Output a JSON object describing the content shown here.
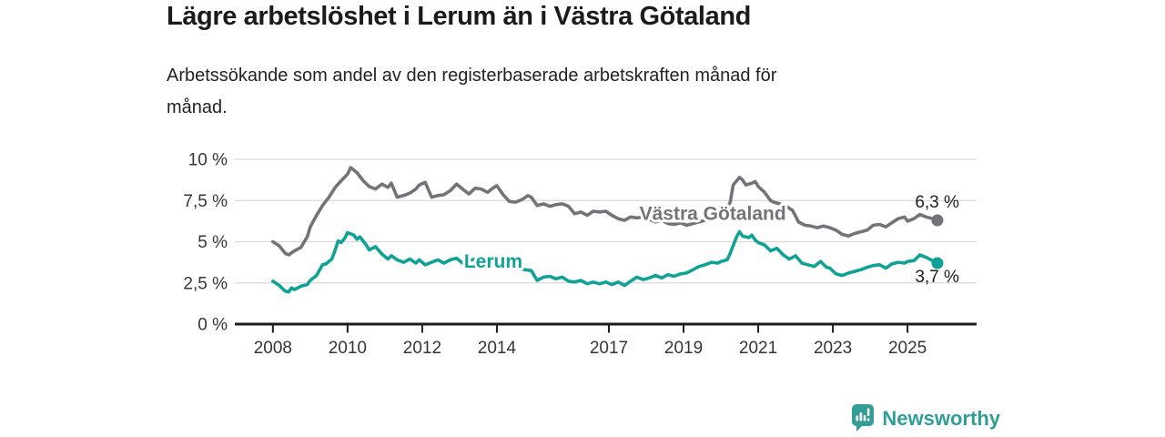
{
  "page": {
    "title": "Lägre arbetslöshet i Lerum än i Västra Götaland",
    "subtitle": "Arbetssökande som andel av den registerbaserade arbetskraften månad för månad.",
    "subtitle_lines": [
      "Arbetssökande som andel av den registerbaserade arbetskraften månad för",
      "månad."
    ],
    "background": "#ffffff"
  },
  "branding": {
    "name": "Newsworthy",
    "icon": "bar-chart-speech-bubble-icon",
    "color": "#2f9e97"
  },
  "colors": {
    "axis": "#1d1d1f",
    "grid": "#d9d9d9",
    "tick_text": "#333639",
    "title_text": "#1b1b1b",
    "vastra_gotaland": "#73737a",
    "lerum": "#11a296"
  },
  "chart_data": {
    "type": "line",
    "title": "Lägre arbetslöshet i Lerum än i Västra Götaland",
    "subtitle": "Arbetssökande som andel av den registerbaserade arbetskraften månad för månad.",
    "unit": "%",
    "grid": true,
    "x_axis": {
      "range": [
        2006.98,
        2026.85
      ],
      "ticks": [
        2008,
        2010,
        2012,
        2014,
        2017,
        2019,
        2021,
        2023,
        2025
      ]
    },
    "y_axis": {
      "range": [
        0,
        10
      ],
      "ticks": [
        {
          "value": 0,
          "label": "0 %"
        },
        {
          "value": 2.5,
          "label": "2,5 %"
        },
        {
          "value": 5,
          "label": "5 %"
        },
        {
          "value": 7.5,
          "label": "7,5 %"
        },
        {
          "value": 10,
          "label": "10 %"
        }
      ]
    },
    "series": [
      {
        "name": "Västra Götaland",
        "color": "#73737a",
        "end_label": "6,3 %",
        "end_label_side": "above",
        "label_at": {
          "x": 2017.82,
          "y": 6.32
        },
        "points": [
          [
            2008.0,
            5.0
          ],
          [
            2008.17,
            4.75
          ],
          [
            2008.33,
            4.3
          ],
          [
            2008.42,
            4.2
          ],
          [
            2008.58,
            4.45
          ],
          [
            2008.75,
            4.65
          ],
          [
            2008.92,
            5.3
          ],
          [
            2009.0,
            5.9
          ],
          [
            2009.17,
            6.6
          ],
          [
            2009.33,
            7.2
          ],
          [
            2009.5,
            7.7
          ],
          [
            2009.67,
            8.3
          ],
          [
            2009.83,
            8.7
          ],
          [
            2010.0,
            9.1
          ],
          [
            2010.08,
            9.5
          ],
          [
            2010.25,
            9.2
          ],
          [
            2010.42,
            8.7
          ],
          [
            2010.58,
            8.35
          ],
          [
            2010.75,
            8.2
          ],
          [
            2010.92,
            8.5
          ],
          [
            2011.08,
            8.3
          ],
          [
            2011.17,
            8.55
          ],
          [
            2011.33,
            7.7
          ],
          [
            2011.5,
            7.8
          ],
          [
            2011.67,
            7.95
          ],
          [
            2011.83,
            8.2
          ],
          [
            2011.92,
            8.45
          ],
          [
            2012.08,
            8.6
          ],
          [
            2012.25,
            7.7
          ],
          [
            2012.42,
            7.8
          ],
          [
            2012.58,
            7.85
          ],
          [
            2012.75,
            8.1
          ],
          [
            2012.92,
            8.5
          ],
          [
            2013.08,
            8.2
          ],
          [
            2013.25,
            7.9
          ],
          [
            2013.42,
            8.25
          ],
          [
            2013.58,
            8.2
          ],
          [
            2013.75,
            8.0
          ],
          [
            2013.92,
            8.3
          ],
          [
            2014.0,
            8.4
          ],
          [
            2014.17,
            7.85
          ],
          [
            2014.33,
            7.45
          ],
          [
            2014.5,
            7.4
          ],
          [
            2014.67,
            7.55
          ],
          [
            2014.83,
            7.8
          ],
          [
            2014.92,
            7.7
          ],
          [
            2015.08,
            7.2
          ],
          [
            2015.25,
            7.3
          ],
          [
            2015.42,
            7.15
          ],
          [
            2015.58,
            7.25
          ],
          [
            2015.75,
            7.3
          ],
          [
            2015.92,
            7.15
          ],
          [
            2016.08,
            6.7
          ],
          [
            2016.25,
            6.8
          ],
          [
            2016.42,
            6.6
          ],
          [
            2016.58,
            6.85
          ],
          [
            2016.75,
            6.8
          ],
          [
            2016.92,
            6.85
          ],
          [
            2017.08,
            6.6
          ],
          [
            2017.25,
            6.4
          ],
          [
            2017.42,
            6.3
          ],
          [
            2017.58,
            6.5
          ],
          [
            2017.75,
            6.45
          ],
          [
            2017.92,
            6.5
          ],
          [
            2018.08,
            6.35
          ],
          [
            2018.25,
            6.2
          ],
          [
            2018.42,
            6.3
          ],
          [
            2018.58,
            6.1
          ],
          [
            2018.75,
            6.05
          ],
          [
            2018.92,
            6.15
          ],
          [
            2019.08,
            6.0
          ],
          [
            2019.25,
            6.1
          ],
          [
            2019.42,
            6.2
          ],
          [
            2019.58,
            6.3
          ],
          [
            2019.75,
            6.45
          ],
          [
            2019.92,
            6.6
          ],
          [
            2020.08,
            6.65
          ],
          [
            2020.25,
            7.4
          ],
          [
            2020.33,
            8.45
          ],
          [
            2020.5,
            8.9
          ],
          [
            2020.58,
            8.75
          ],
          [
            2020.67,
            8.45
          ],
          [
            2020.83,
            8.55
          ],
          [
            2020.92,
            8.65
          ],
          [
            2021.0,
            8.35
          ],
          [
            2021.17,
            8.0
          ],
          [
            2021.33,
            7.5
          ],
          [
            2021.42,
            7.4
          ],
          [
            2021.58,
            7.3
          ],
          [
            2021.75,
            7.15
          ],
          [
            2021.92,
            6.9
          ],
          [
            2022.08,
            6.2
          ],
          [
            2022.25,
            6.0
          ],
          [
            2022.42,
            5.95
          ],
          [
            2022.58,
            5.85
          ],
          [
            2022.75,
            5.95
          ],
          [
            2022.92,
            5.85
          ],
          [
            2023.08,
            5.7
          ],
          [
            2023.25,
            5.45
          ],
          [
            2023.42,
            5.35
          ],
          [
            2023.58,
            5.5
          ],
          [
            2023.75,
            5.6
          ],
          [
            2023.92,
            5.7
          ],
          [
            2024.08,
            6.0
          ],
          [
            2024.25,
            6.05
          ],
          [
            2024.42,
            5.9
          ],
          [
            2024.58,
            6.15
          ],
          [
            2024.75,
            6.4
          ],
          [
            2024.92,
            6.5
          ],
          [
            2025.0,
            6.25
          ],
          [
            2025.17,
            6.4
          ],
          [
            2025.33,
            6.65
          ],
          [
            2025.5,
            6.5
          ],
          [
            2025.67,
            6.4
          ],
          [
            2025.8,
            6.3
          ]
        ]
      },
      {
        "name": "Lerum",
        "color": "#11a296",
        "end_label": "3,7 %",
        "end_label_side": "below",
        "label_at": {
          "x": 2013.12,
          "y": 3.43
        },
        "points": [
          [
            2008.0,
            2.6
          ],
          [
            2008.17,
            2.35
          ],
          [
            2008.33,
            2.0
          ],
          [
            2008.42,
            1.95
          ],
          [
            2008.5,
            2.2
          ],
          [
            2008.58,
            2.1
          ],
          [
            2008.75,
            2.3
          ],
          [
            2008.92,
            2.4
          ],
          [
            2009.0,
            2.65
          ],
          [
            2009.17,
            2.95
          ],
          [
            2009.33,
            3.6
          ],
          [
            2009.42,
            3.65
          ],
          [
            2009.58,
            3.95
          ],
          [
            2009.67,
            4.5
          ],
          [
            2009.75,
            5.05
          ],
          [
            2009.83,
            4.95
          ],
          [
            2009.92,
            5.2
          ],
          [
            2010.0,
            5.55
          ],
          [
            2010.17,
            5.4
          ],
          [
            2010.25,
            5.15
          ],
          [
            2010.33,
            5.3
          ],
          [
            2010.5,
            4.8
          ],
          [
            2010.58,
            4.5
          ],
          [
            2010.75,
            4.7
          ],
          [
            2010.92,
            4.25
          ],
          [
            2011.08,
            3.95
          ],
          [
            2011.17,
            4.15
          ],
          [
            2011.33,
            3.9
          ],
          [
            2011.5,
            3.75
          ],
          [
            2011.67,
            3.95
          ],
          [
            2011.83,
            3.7
          ],
          [
            2011.92,
            3.9
          ],
          [
            2012.08,
            3.6
          ],
          [
            2012.25,
            3.75
          ],
          [
            2012.42,
            3.9
          ],
          [
            2012.58,
            3.7
          ],
          [
            2012.75,
            3.9
          ],
          [
            2012.92,
            4.0
          ],
          [
            2013.08,
            3.7
          ],
          [
            2013.25,
            3.85
          ],
          [
            2013.42,
            3.95
          ],
          [
            2013.58,
            3.8
          ],
          [
            2013.75,
            3.9
          ],
          [
            2013.92,
            3.8
          ],
          [
            2014.08,
            3.9
          ],
          [
            2014.25,
            3.7
          ],
          [
            2014.42,
            3.5
          ],
          [
            2014.58,
            3.4
          ],
          [
            2014.75,
            3.3
          ],
          [
            2014.92,
            3.25
          ],
          [
            2015.08,
            2.65
          ],
          [
            2015.25,
            2.85
          ],
          [
            2015.42,
            2.9
          ],
          [
            2015.58,
            2.75
          ],
          [
            2015.75,
            2.85
          ],
          [
            2015.92,
            2.6
          ],
          [
            2016.08,
            2.55
          ],
          [
            2016.25,
            2.65
          ],
          [
            2016.42,
            2.45
          ],
          [
            2016.58,
            2.55
          ],
          [
            2016.75,
            2.45
          ],
          [
            2016.92,
            2.55
          ],
          [
            2017.08,
            2.4
          ],
          [
            2017.25,
            2.55
          ],
          [
            2017.42,
            2.35
          ],
          [
            2017.58,
            2.6
          ],
          [
            2017.75,
            2.85
          ],
          [
            2017.92,
            2.7
          ],
          [
            2018.08,
            2.8
          ],
          [
            2018.25,
            2.95
          ],
          [
            2018.42,
            2.8
          ],
          [
            2018.58,
            3.0
          ],
          [
            2018.75,
            2.9
          ],
          [
            2018.92,
            3.05
          ],
          [
            2019.08,
            3.1
          ],
          [
            2019.25,
            3.3
          ],
          [
            2019.42,
            3.5
          ],
          [
            2019.58,
            3.6
          ],
          [
            2019.75,
            3.75
          ],
          [
            2019.92,
            3.7
          ],
          [
            2020.0,
            3.8
          ],
          [
            2020.17,
            3.9
          ],
          [
            2020.25,
            4.3
          ],
          [
            2020.42,
            5.3
          ],
          [
            2020.5,
            5.6
          ],
          [
            2020.58,
            5.35
          ],
          [
            2020.75,
            5.25
          ],
          [
            2020.83,
            5.4
          ],
          [
            2020.92,
            5.1
          ],
          [
            2021.0,
            4.95
          ],
          [
            2021.17,
            4.8
          ],
          [
            2021.33,
            4.45
          ],
          [
            2021.5,
            4.6
          ],
          [
            2021.67,
            4.2
          ],
          [
            2021.83,
            3.95
          ],
          [
            2021.92,
            4.05
          ],
          [
            2022.0,
            4.15
          ],
          [
            2022.17,
            3.7
          ],
          [
            2022.33,
            3.6
          ],
          [
            2022.5,
            3.5
          ],
          [
            2022.67,
            3.8
          ],
          [
            2022.83,
            3.45
          ],
          [
            2022.92,
            3.4
          ],
          [
            2023.08,
            3.05
          ],
          [
            2023.25,
            2.95
          ],
          [
            2023.42,
            3.1
          ],
          [
            2023.58,
            3.2
          ],
          [
            2023.75,
            3.3
          ],
          [
            2023.92,
            3.45
          ],
          [
            2024.08,
            3.55
          ],
          [
            2024.25,
            3.6
          ],
          [
            2024.42,
            3.4
          ],
          [
            2024.58,
            3.65
          ],
          [
            2024.75,
            3.75
          ],
          [
            2024.92,
            3.7
          ],
          [
            2025.0,
            3.8
          ],
          [
            2025.17,
            3.85
          ],
          [
            2025.33,
            4.2
          ],
          [
            2025.5,
            4.05
          ],
          [
            2025.67,
            3.85
          ],
          [
            2025.8,
            3.7
          ]
        ]
      }
    ]
  }
}
